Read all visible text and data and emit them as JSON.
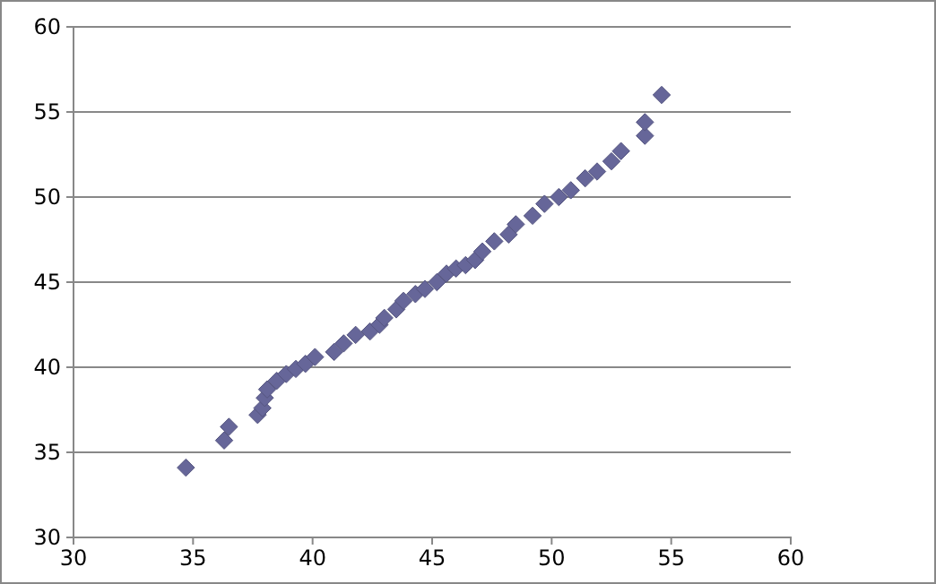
{
  "chart_data": {
    "type": "scatter",
    "marker": "diamond",
    "grid": "y",
    "xlim": [
      30,
      60
    ],
    "xticks": [
      30,
      35,
      40,
      45,
      50,
      55,
      60
    ],
    "ylim": [
      30,
      60
    ],
    "yticks": [
      30,
      35,
      40,
      45,
      50,
      55,
      60
    ],
    "series": [
      {
        "color": "#666699",
        "x": [
          34.7,
          36.5,
          36.3,
          37.7,
          37.9,
          38.0,
          38.1,
          38.5,
          38.9,
          39.3,
          39.7,
          40.1,
          40.9,
          41.3,
          41.8,
          42.4,
          42.8,
          43.0,
          43.5,
          43.8,
          44.3,
          44.7,
          45.2,
          45.6,
          46.0,
          46.4,
          46.8,
          47.1,
          47.6,
          48.2,
          48.5,
          49.2,
          49.7,
          50.3,
          50.8,
          51.4,
          51.9,
          52.5,
          52.9,
          53.9,
          53.9,
          54.6
        ],
        "values": [
          34.1,
          36.5,
          35.7,
          37.2,
          37.6,
          38.2,
          38.7,
          39.2,
          39.6,
          39.9,
          40.2,
          40.6,
          40.9,
          41.4,
          41.9,
          42.1,
          42.5,
          42.9,
          43.4,
          43.9,
          44.3,
          44.6,
          45.0,
          45.5,
          45.8,
          46.0,
          46.3,
          46.8,
          47.4,
          47.8,
          48.4,
          48.9,
          49.6,
          50.0,
          50.4,
          51.1,
          51.5,
          52.1,
          52.7,
          53.6,
          54.4,
          56.0
        ]
      }
    ]
  }
}
